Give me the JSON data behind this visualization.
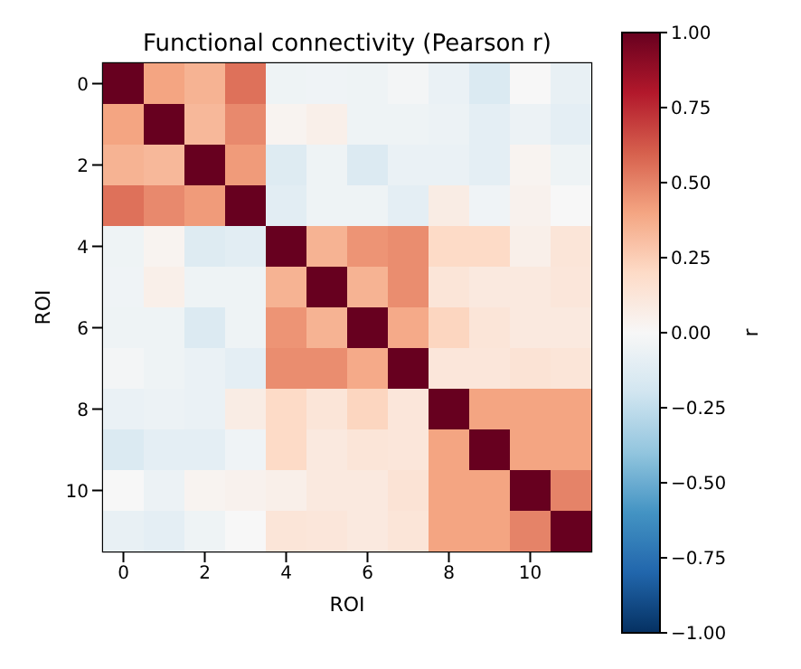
{
  "chart_data": {
    "type": "heatmap",
    "title": "Functional connectivity (Pearson r)",
    "xlabel": "ROI",
    "ylabel": "ROI",
    "clabel": "r",
    "categories": [
      "0",
      null,
      "2",
      null,
      "4",
      null,
      "6",
      null,
      "8",
      null,
      "10",
      null
    ],
    "y_categories": [
      "0",
      null,
      "2",
      null,
      "4",
      null,
      "6",
      null,
      "8",
      null,
      "10",
      null
    ],
    "cells": [
      [
        1,
        0.4,
        0.35,
        0.55,
        -0.05,
        -0.04,
        -0.05,
        -0.02,
        -0.07,
        -0.15,
        0.0,
        -0.08
      ],
      [
        0.4,
        1,
        0.33,
        0.48,
        0.03,
        0.06,
        -0.05,
        -0.05,
        -0.06,
        -0.1,
        -0.06,
        -0.1
      ],
      [
        0.35,
        0.33,
        1,
        0.43,
        -0.13,
        -0.05,
        -0.14,
        -0.07,
        -0.07,
        -0.1,
        0.03,
        -0.05
      ],
      [
        0.55,
        0.48,
        0.43,
        1,
        -0.11,
        -0.05,
        -0.05,
        -0.1,
        0.08,
        -0.04,
        0.04,
        0.0
      ],
      [
        -0.05,
        0.03,
        -0.13,
        -0.11,
        1,
        0.35,
        0.45,
        0.47,
        0.2,
        0.2,
        0.06,
        0.13
      ],
      [
        -0.04,
        0.06,
        -0.05,
        -0.05,
        0.35,
        1,
        0.35,
        0.47,
        0.13,
        0.1,
        0.1,
        0.12
      ],
      [
        -0.05,
        -0.05,
        -0.14,
        -0.05,
        0.45,
        0.35,
        1,
        0.38,
        0.22,
        0.13,
        0.1,
        0.1
      ],
      [
        -0.02,
        -0.05,
        -0.07,
        -0.1,
        0.47,
        0.47,
        0.38,
        1,
        0.12,
        0.12,
        0.14,
        0.13
      ],
      [
        -0.07,
        -0.06,
        -0.07,
        0.08,
        0.2,
        0.13,
        0.22,
        0.12,
        1,
        0.4,
        0.4,
        0.4
      ],
      [
        -0.15,
        -0.1,
        -0.1,
        -0.04,
        0.2,
        0.1,
        0.13,
        0.12,
        0.4,
        1,
        0.4,
        0.4
      ],
      [
        0.0,
        -0.06,
        0.03,
        0.04,
        0.06,
        0.1,
        0.1,
        0.14,
        0.4,
        0.4,
        1,
        0.5
      ],
      [
        -0.08,
        -0.1,
        -0.05,
        0.0,
        0.13,
        0.12,
        0.1,
        0.13,
        0.4,
        0.4,
        0.5,
        1
      ]
    ],
    "clim": [
      -1,
      1
    ],
    "cticks": [
      {
        "value": -1,
        "label": "−1.00"
      },
      {
        "value": -0.75,
        "label": "−0.75"
      },
      {
        "value": -0.5,
        "label": "−0.50"
      },
      {
        "value": -0.25,
        "label": "−0.25"
      },
      {
        "value": 0,
        "label": "0.00"
      },
      {
        "value": 0.25,
        "label": "0.25"
      },
      {
        "value": 0.5,
        "label": "0.50"
      },
      {
        "value": 0.75,
        "label": "0.75"
      },
      {
        "value": 1,
        "label": "1.00"
      }
    ]
  }
}
